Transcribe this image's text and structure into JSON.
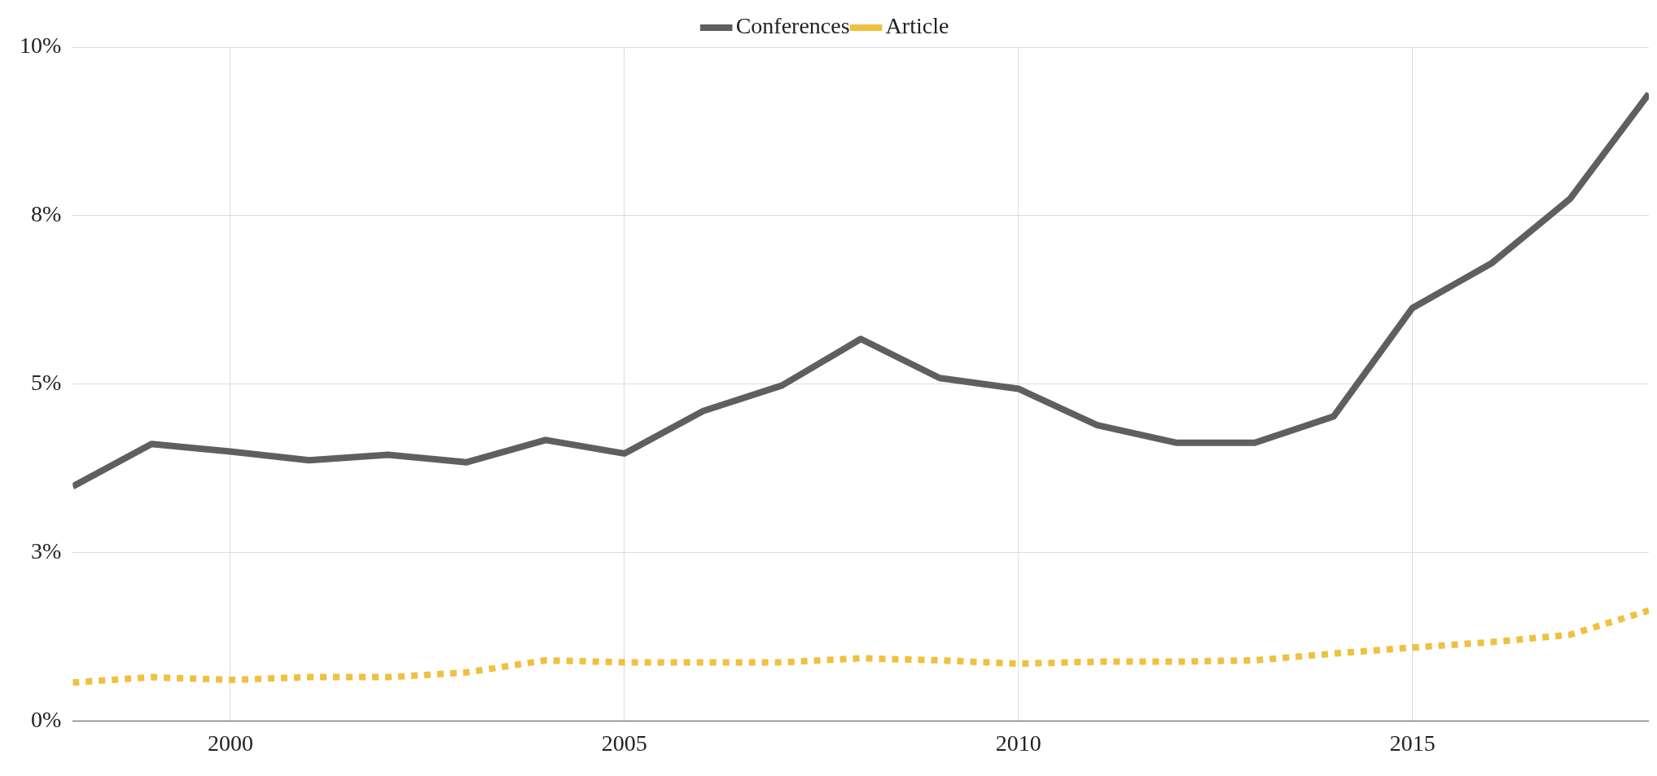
{
  "chart_data": {
    "type": "line",
    "x": [
      1998,
      1999,
      2000,
      2001,
      2002,
      2003,
      2004,
      2005,
      2006,
      2007,
      2008,
      2009,
      2010,
      2011,
      2012,
      2013,
      2014,
      2015,
      2016,
      2017,
      2018
    ],
    "series": [
      {
        "name": "Conferences",
        "color": "#5f5f5f",
        "line_style": "solid",
        "values": [
          3.48,
          4.11,
          4.0,
          3.87,
          3.95,
          3.84,
          4.17,
          3.97,
          4.6,
          4.98,
          5.67,
          5.09,
          4.93,
          4.39,
          4.13,
          4.13,
          4.52,
          6.13,
          6.79,
          7.75,
          9.31
        ]
      },
      {
        "name": "Article",
        "color": "#f0c040",
        "line_style": "dotted",
        "values": [
          0.57,
          0.65,
          0.61,
          0.65,
          0.65,
          0.72,
          0.9,
          0.87,
          0.87,
          0.87,
          0.93,
          0.9,
          0.85,
          0.88,
          0.88,
          0.9,
          1.0,
          1.09,
          1.17,
          1.28,
          1.64
        ]
      }
    ],
    "xlim": [
      1998,
      2018
    ],
    "xticks": [
      2000,
      2005,
      2010,
      2015
    ],
    "ylim": [
      0,
      10
    ],
    "yticks": [
      {
        "value": 0,
        "label": "0%"
      },
      {
        "value": 2.5,
        "label": "3%"
      },
      {
        "value": 5,
        "label": "5%"
      },
      {
        "value": 7.5,
        "label": "8%"
      },
      {
        "value": 10,
        "label": "10%"
      }
    ],
    "grid": true,
    "legend": "top",
    "marker": "none"
  }
}
